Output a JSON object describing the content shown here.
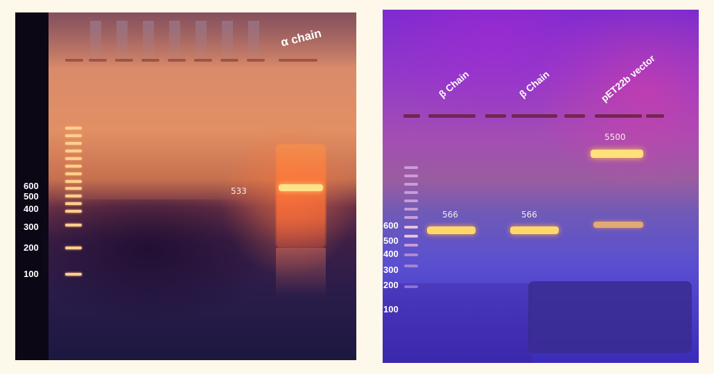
{
  "left_gel": {
    "lane_label": "α  chain",
    "band_label": "533",
    "markers": [
      "600",
      "500",
      "400",
      "300",
      "200",
      "100"
    ]
  },
  "right_gel": {
    "lane_labels": [
      "β Chain",
      "β Chain",
      "pET22b vector"
    ],
    "band_labels": [
      "566",
      "566",
      "5500"
    ],
    "markers": [
      "600",
      "500",
      "400",
      "300",
      "200",
      "100"
    ]
  },
  "colors": {
    "background": "#fdf8ea",
    "left_gel_glow": "#e28f64",
    "right_gel_glow": "#8f3ac9",
    "band_yellow": "#ffe28a"
  }
}
